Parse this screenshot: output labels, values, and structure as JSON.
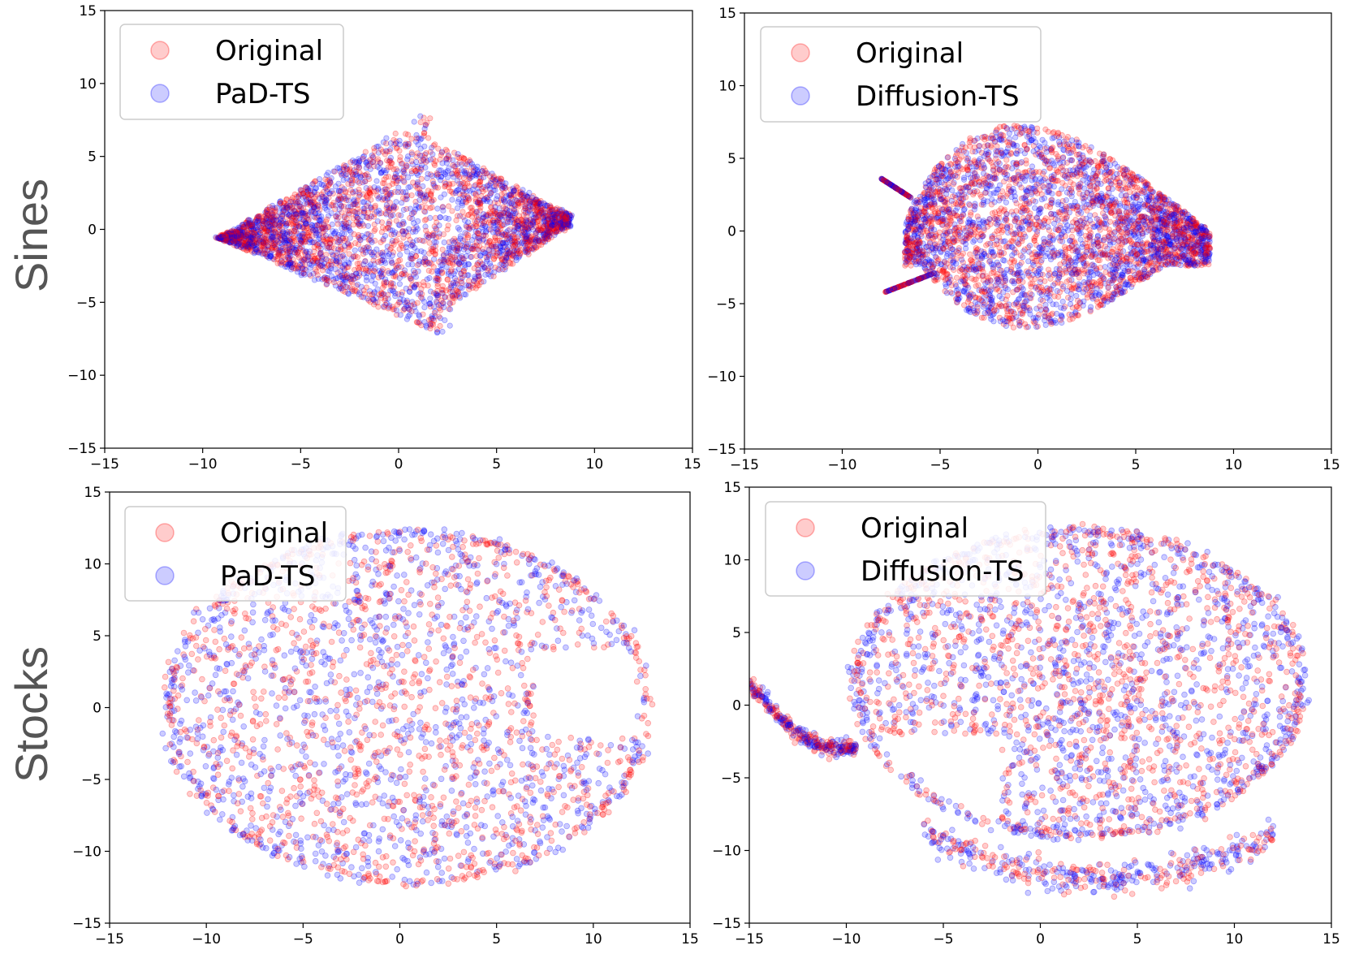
{
  "figure": {
    "row_labels": [
      "Sines",
      "Stocks"
    ],
    "marker_colors": {
      "original": "#ff0000",
      "generated": "#0000ff"
    },
    "marker_alpha": 0.2
  },
  "chart_data": [
    {
      "type": "scatter",
      "row_label": "Sines",
      "xlim": [
        -15,
        15
      ],
      "ylim": [
        -15,
        15
      ],
      "x_ticks": [
        -15,
        -10,
        -5,
        0,
        5,
        10,
        15
      ],
      "y_ticks": [
        -15,
        -10,
        -5,
        0,
        5,
        10,
        15
      ],
      "grid": false,
      "legend_position": "top-left",
      "series": [
        {
          "name": "Original",
          "color": "#ff0000"
        },
        {
          "name": "PaD-TS",
          "color": "#0000ff"
        }
      ],
      "approximate_extent": {
        "x": [
          -9.2,
          8.7
        ],
        "y": [
          -7.6,
          8.1
        ]
      }
    },
    {
      "type": "scatter",
      "row_label": "Sines",
      "xlim": [
        -15,
        15
      ],
      "ylim": [
        -15,
        15
      ],
      "x_ticks": [
        -15,
        -10,
        -5,
        0,
        5,
        10,
        15
      ],
      "y_ticks": [
        -15,
        -10,
        -5,
        0,
        5,
        10,
        15
      ],
      "grid": false,
      "legend_position": "top-left",
      "series": [
        {
          "name": "Original",
          "color": "#ff0000"
        },
        {
          "name": "Diffusion-TS",
          "color": "#0000ff"
        }
      ],
      "approximate_extent": {
        "x": [
          -8,
          8.8
        ],
        "y": [
          -6.7,
          7.8
        ]
      }
    },
    {
      "type": "scatter",
      "row_label": "Stocks",
      "xlim": [
        -15,
        15
      ],
      "ylim": [
        -15,
        15
      ],
      "x_ticks": [
        -15,
        -10,
        -5,
        0,
        5,
        10,
        15
      ],
      "y_ticks": [
        -15,
        -10,
        -5,
        0,
        5,
        10,
        15
      ],
      "grid": false,
      "legend_position": "top-left",
      "series": [
        {
          "name": "Original",
          "color": "#ff0000"
        },
        {
          "name": "PaD-TS",
          "color": "#0000ff"
        }
      ],
      "approximate_extent": {
        "x": [
          -12.3,
          13.2
        ],
        "y": [
          -12.3,
          12.3
        ]
      }
    },
    {
      "type": "scatter",
      "row_label": "Stocks",
      "xlim": [
        -15,
        15
      ],
      "ylim": [
        -15,
        15
      ],
      "x_ticks": [
        -15,
        -10,
        -5,
        0,
        5,
        10,
        15
      ],
      "y_ticks": [
        -15,
        -10,
        -5,
        0,
        5,
        10,
        15
      ],
      "grid": false,
      "legend_position": "top-left",
      "series": [
        {
          "name": "Original",
          "color": "#ff0000"
        },
        {
          "name": "Diffusion-TS",
          "color": "#0000ff"
        }
      ],
      "approximate_extent": {
        "x": [
          -15,
          12
        ],
        "y": [
          -13,
          12
        ]
      }
    }
  ]
}
